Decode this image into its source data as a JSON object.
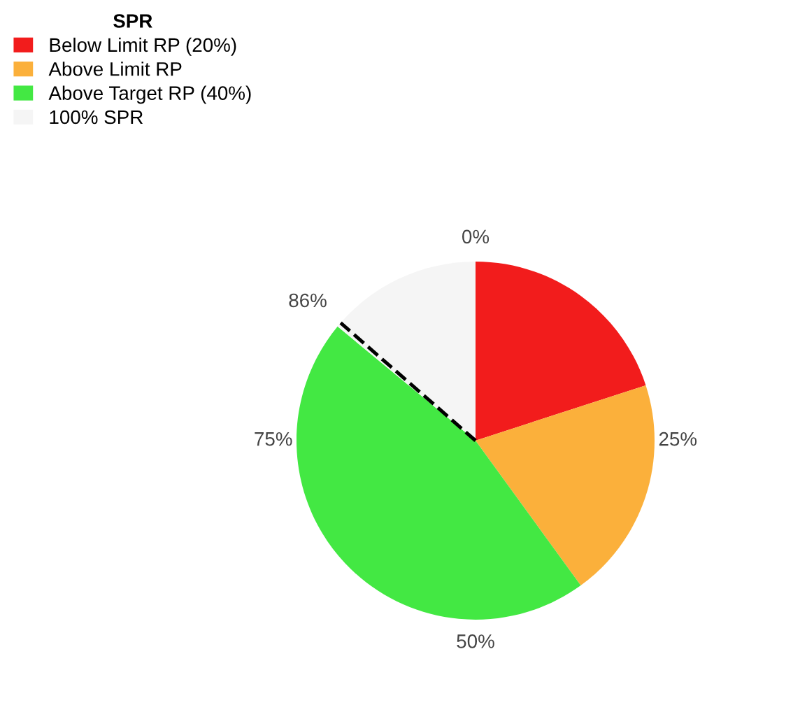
{
  "chart_data": {
    "type": "pie",
    "legend_title": "SPR",
    "categories": [
      "Below Limit RP (20%)",
      "Above Limit RP",
      "Above Target RP (40%)",
      "100% SPR"
    ],
    "values": [
      20,
      20,
      46,
      14
    ],
    "colors": [
      "#f21c1c",
      "#fbb03b",
      "#43e843",
      "#f5f5f5"
    ],
    "needle": "100% SPR",
    "annotations": [
      "0%",
      "25%",
      "50%",
      "75%",
      "86%"
    ],
    "legend": "top left"
  }
}
